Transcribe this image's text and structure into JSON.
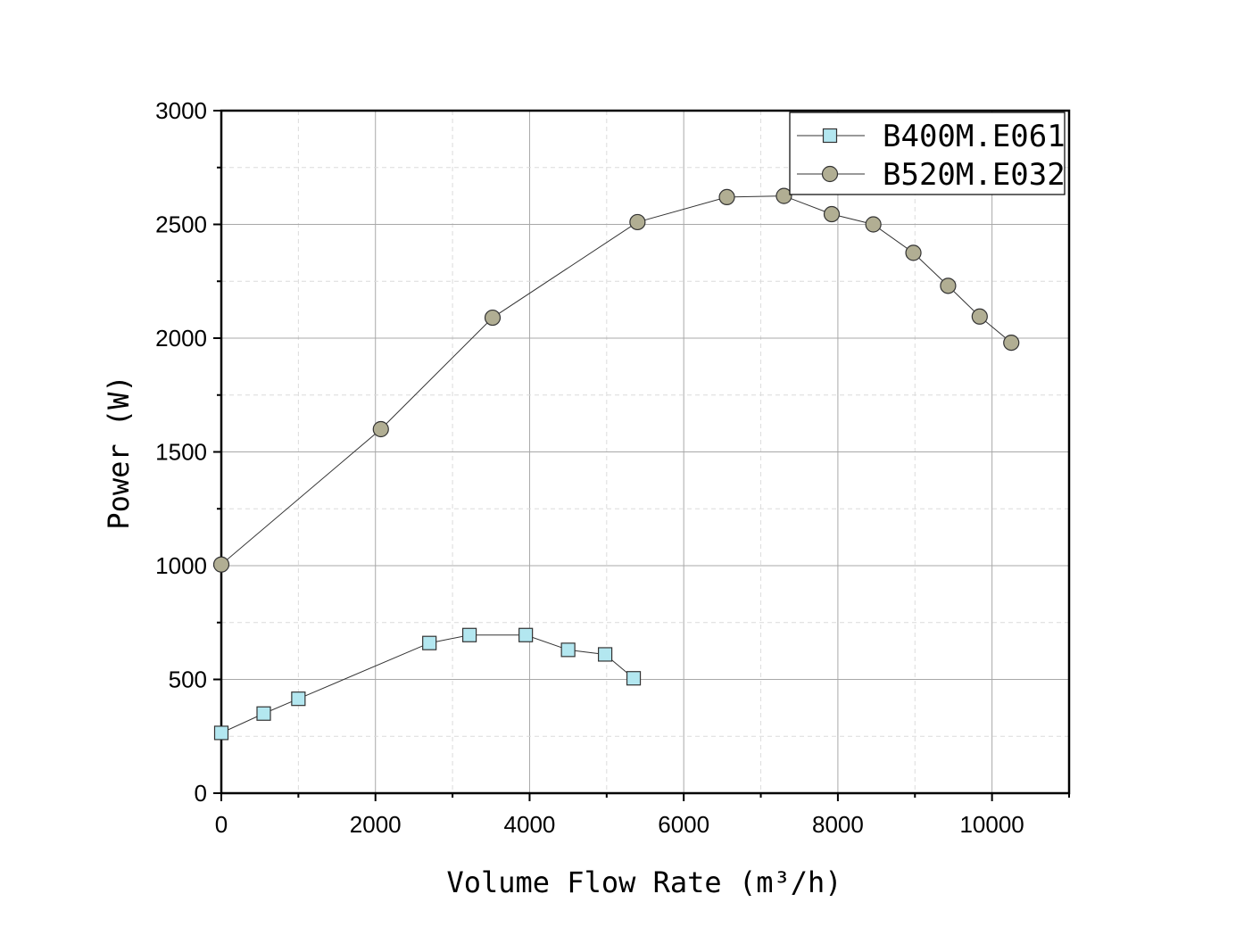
{
  "chart_data": {
    "type": "line",
    "xlabel": "Volume Flow Rate (m³/h)",
    "ylabel": "Power (W)",
    "xlim": [
      0,
      11000
    ],
    "ylim": [
      0,
      3000
    ],
    "x_ticks": [
      0,
      2000,
      4000,
      6000,
      8000,
      10000
    ],
    "y_ticks": [
      0,
      500,
      1000,
      1500,
      2000,
      2500,
      3000
    ],
    "grid": true,
    "legend_position": "top-right",
    "series": [
      {
        "name": "B400M.E061",
        "marker": "square",
        "color": "#b3e7f0",
        "x": [
          0,
          550,
          1000,
          2700,
          3220,
          3950,
          4500,
          4980,
          5350
        ],
        "y": [
          265,
          350,
          415,
          660,
          695,
          695,
          630,
          610,
          505
        ]
      },
      {
        "name": "B520M.E032",
        "marker": "circle",
        "color": "#b1ae93",
        "x": [
          0,
          2070,
          3520,
          5400,
          6560,
          7300,
          7920,
          8460,
          8980,
          9430,
          9840,
          10250
        ],
        "y": [
          1005,
          1600,
          2090,
          2510,
          2620,
          2625,
          2545,
          2500,
          2375,
          2230,
          2095,
          1980
        ]
      }
    ]
  }
}
